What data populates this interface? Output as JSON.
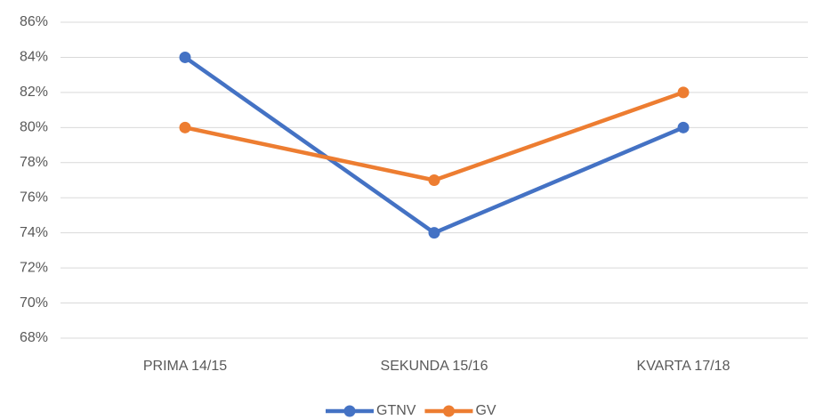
{
  "chart_data": {
    "type": "line",
    "categories": [
      "PRIMA 14/15",
      "SEKUNDA 15/16",
      "KVARTA 17/18"
    ],
    "series": [
      {
        "name": "GTNV",
        "color": "#4472c4",
        "values": [
          84,
          74,
          80
        ]
      },
      {
        "name": "GV",
        "color": "#ed7d31",
        "values": [
          80,
          77,
          82
        ]
      }
    ],
    "ylim": [
      68,
      86
    ],
    "yticks": [
      {
        "value": 68,
        "label": "68%"
      },
      {
        "value": 70,
        "label": "70%"
      },
      {
        "value": 72,
        "label": "72%"
      },
      {
        "value": 74,
        "label": "74%"
      },
      {
        "value": 76,
        "label": "76%"
      },
      {
        "value": 78,
        "label": "78%"
      },
      {
        "value": 80,
        "label": "80%"
      },
      {
        "value": 82,
        "label": "82%"
      },
      {
        "value": 84,
        "label": "84%"
      },
      {
        "value": 86,
        "label": "86%"
      }
    ],
    "grid": true,
    "legend": "bottom"
  }
}
